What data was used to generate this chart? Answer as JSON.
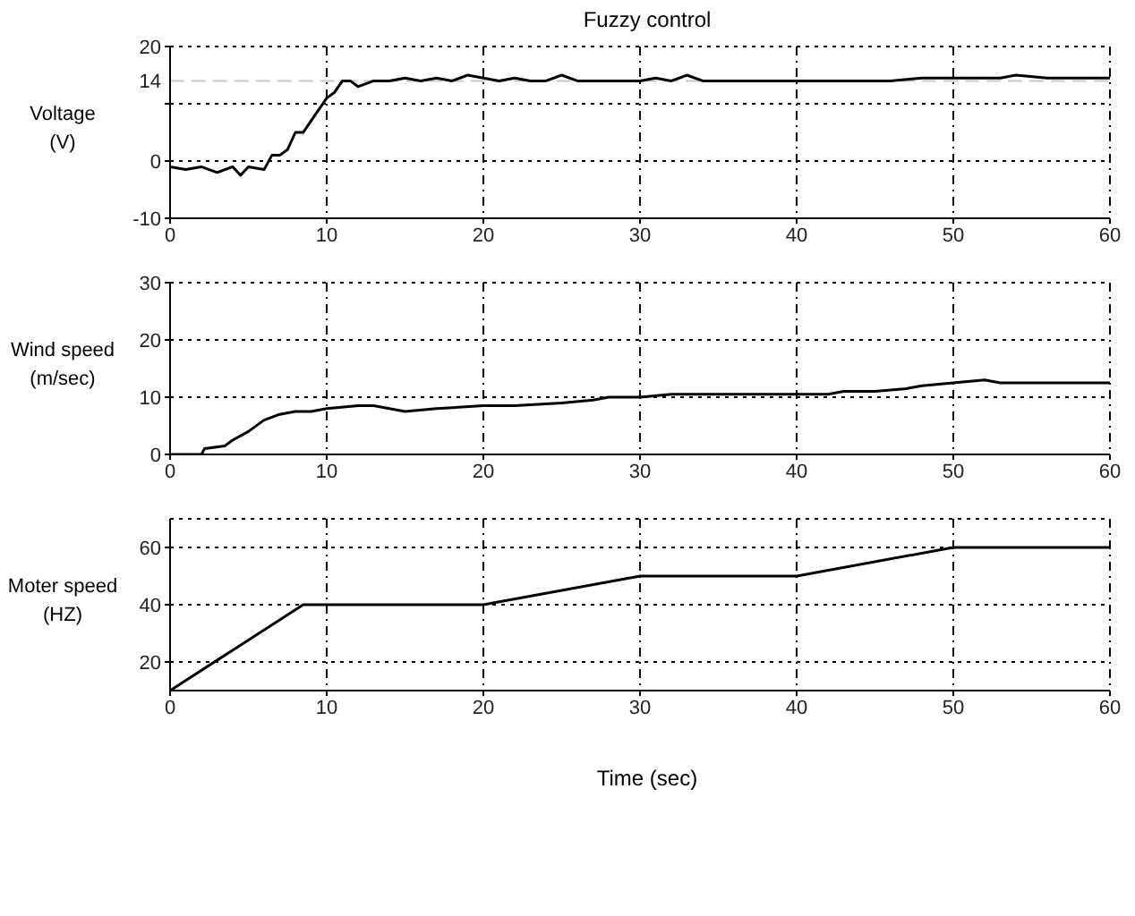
{
  "chart_data": [
    {
      "type": "line",
      "title": "Fuzzy control",
      "ylabel": "Voltage (V)",
      "xlim": [
        0,
        60
      ],
      "xticks": [
        0,
        10,
        20,
        30,
        40,
        50,
        60
      ],
      "ylim": [
        -10,
        20
      ],
      "yticks": [
        -10,
        0,
        {
          "value": 10,
          "label": null
        },
        20
      ],
      "grid": true,
      "ref_lines": [
        {
          "axis": "y",
          "value": 14,
          "label": "14",
          "color": "#c8c8c8",
          "line_style": "dashed"
        }
      ],
      "series": [
        {
          "color": "#000000",
          "x": [
            0,
            1,
            2,
            3,
            4,
            4.5,
            5,
            6,
            6.5,
            7,
            7.5,
            8,
            8.5,
            9,
            9.5,
            10,
            10.5,
            11,
            11.5,
            12,
            13,
            14,
            15,
            16,
            17,
            18,
            19,
            20,
            21,
            22,
            23,
            24,
            25,
            26,
            28,
            30,
            31,
            32,
            33,
            34,
            36,
            38,
            40,
            42,
            44,
            46,
            48,
            50,
            52,
            53,
            54,
            56,
            58,
            60
          ],
          "values": [
            -1,
            -1.5,
            -1,
            -2,
            -1,
            -2.5,
            -1,
            -1.5,
            1,
            1,
            2,
            5,
            5,
            7,
            9,
            11,
            12,
            14,
            14,
            13,
            14,
            14,
            14.5,
            14,
            14.5,
            14,
            15,
            14.5,
            14,
            14.5,
            14,
            14,
            15,
            14,
            14,
            14,
            14.5,
            14,
            15,
            14,
            14,
            14,
            14,
            14,
            14,
            14,
            14.5,
            14.5,
            14.5,
            14.5,
            15,
            14.5,
            14.5,
            14.5
          ]
        }
      ]
    },
    {
      "type": "line",
      "ylabel": "Wind speed (m/sec)",
      "xlim": [
        0,
        60
      ],
      "xticks": [
        0,
        10,
        20,
        30,
        40,
        50,
        60
      ],
      "ylim": [
        0,
        30
      ],
      "yticks": [
        0,
        10,
        20,
        30
      ],
      "grid": true,
      "series": [
        {
          "color": "#000000",
          "x": [
            0,
            2,
            2.2,
            3.5,
            4,
            5,
            6,
            7,
            8,
            9,
            10,
            12,
            13,
            14,
            15,
            17,
            20,
            22,
            25,
            27,
            28,
            30,
            32,
            35,
            38,
            40,
            42,
            43,
            45,
            47,
            48,
            50,
            52,
            53,
            55,
            57,
            60
          ],
          "values": [
            0,
            0,
            1,
            1.5,
            2.5,
            4,
            6,
            7,
            7.5,
            7.5,
            8,
            8.5,
            8.5,
            8,
            7.5,
            8,
            8.5,
            8.5,
            9,
            9.5,
            10,
            10,
            10.5,
            10.5,
            10.5,
            10.5,
            10.5,
            11,
            11,
            11.5,
            12,
            12.5,
            13,
            12.5,
            12.5,
            12.5,
            12.5
          ]
        }
      ]
    },
    {
      "type": "line",
      "ylabel": "Moter speed (HZ)",
      "xlabel": "Time (sec)",
      "xlim": [
        0,
        60
      ],
      "xticks": [
        0,
        10,
        20,
        30,
        40,
        50,
        60
      ],
      "ylim": [
        10,
        70
      ],
      "yticks": [
        20,
        40,
        60
      ],
      "grid": true,
      "series": [
        {
          "color": "#000000",
          "x": [
            0,
            8.5,
            20,
            30,
            40,
            50,
            60
          ],
          "values": [
            10,
            40,
            40,
            50,
            50,
            60,
            60
          ]
        }
      ]
    }
  ]
}
